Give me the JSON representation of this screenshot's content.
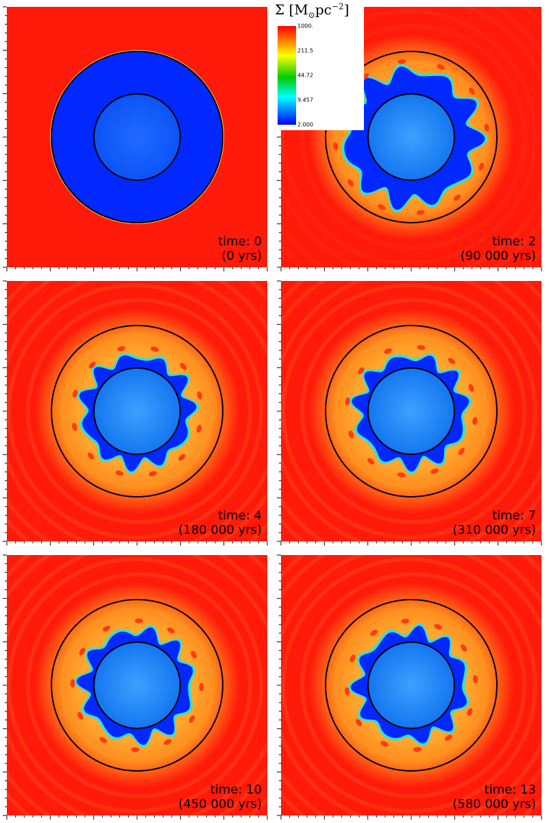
{
  "colorbar": {
    "title_symbol": "Σ",
    "title_open": "[M",
    "title_sub": "⊙",
    "title_mid": "pc",
    "title_sup": "−2",
    "title_close": "]",
    "ticks": [
      "1000.",
      "211.5",
      "44.72",
      "9.457",
      "2.000"
    ],
    "colors": [
      "#ff0000",
      "#ffff00",
      "#00cc00",
      "#00ffff",
      "#0000ff"
    ]
  },
  "panels": [
    {
      "time": "time: 0",
      "years": "(0 yrs)",
      "stage": 0
    },
    {
      "time": "time: 2",
      "years": "(90 000 yrs)",
      "stage": 1
    },
    {
      "time": "time: 4",
      "years": "(180 000 yrs)",
      "stage": 2
    },
    {
      "time": "time: 7",
      "years": "(310 000 yrs)",
      "stage": 3
    },
    {
      "time": "time: 10",
      "years": "(450 000 yrs)",
      "stage": 4
    },
    {
      "time": "time: 13",
      "years": "(580 000 yrs)",
      "stage": 5
    }
  ],
  "colors": {
    "background_red": "#ff1a0a",
    "inner_blue": "#1a8cff",
    "deep_blue": "#0028ff",
    "ring_orange": "#ff8c1e",
    "ring_yellow": "#ffd24a"
  }
}
